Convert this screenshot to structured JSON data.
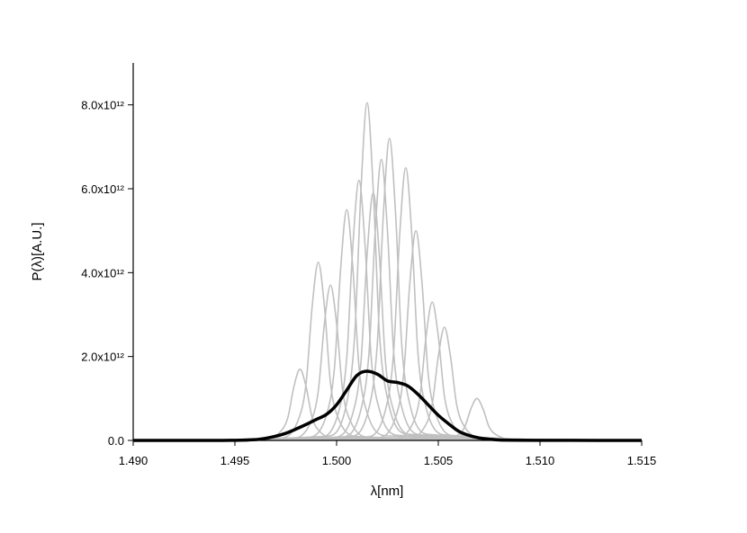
{
  "chart_data": {
    "type": "line",
    "x_label": "λ[nm]",
    "y_label": "P(λ)[A.U.]",
    "xlim": [
      1.49,
      1.515
    ],
    "xticks": [
      {
        "value": 1.49,
        "label": "1.490"
      },
      {
        "value": 1.495,
        "label": "1.495"
      },
      {
        "value": 1.5,
        "label": "1.500"
      },
      {
        "value": 1.505,
        "label": "1.505"
      },
      {
        "value": 1.51,
        "label": "1.510"
      },
      {
        "value": 1.515,
        "label": "1.515"
      }
    ],
    "ylim": [
      0,
      9000000000000.0
    ],
    "yticks": [
      {
        "value": 0,
        "label": "0.0"
      },
      {
        "value": 2000000000000.0,
        "label": "2.0x10¹²"
      },
      {
        "value": 4000000000000.0,
        "label": "4.0x10¹²"
      },
      {
        "value": 6000000000000.0,
        "label": "6.0x10¹²"
      },
      {
        "value": 8000000000000.0,
        "label": "8.0x10¹²"
      }
    ],
    "series": [
      {
        "color": "#c0c0c0",
        "x": [
          1.49,
          1.4995,
          1.5005,
          1.5009,
          1.5012,
          1.5015,
          1.5018,
          1.5021,
          1.5025,
          1.5035,
          1.515
        ],
        "values": [
          0,
          100000000000.0,
          900000000000.0,
          2600000000000.0,
          6000000000000.0,
          8050000000000.0,
          6000000000000.0,
          2600000000000.0,
          1000000000000.0,
          150000000000.0,
          0
        ]
      },
      {
        "color": "#c0c0c0",
        "x": [
          1.49,
          1.5006,
          1.5016,
          1.502,
          1.5023,
          1.5026,
          1.5029,
          1.5032,
          1.5036,
          1.5046,
          1.515
        ],
        "values": [
          0,
          90000000000.0,
          790000000000.0,
          2300000000000.0,
          5400000000000.0,
          7200000000000.0,
          5400000000000.0,
          2300000000000.0,
          860000000000.0,
          140000000000.0,
          0
        ]
      },
      {
        "color": "#c0c0c0",
        "x": [
          1.49,
          1.5014,
          1.5024,
          1.5028,
          1.5031,
          1.5034,
          1.5037,
          1.504,
          1.5044,
          1.5054,
          1.515
        ],
        "values": [
          0,
          80000000000.0,
          720000000000.0,
          2080000000000.0,
          4880000000000.0,
          6500000000000.0,
          4880000000000.0,
          2080000000000.0,
          780000000000.0,
          130000000000.0,
          0
        ]
      },
      {
        "color": "#c0c0c0",
        "x": [
          1.49,
          1.5002,
          1.5012,
          1.5016,
          1.5019,
          1.5022,
          1.5025,
          1.5028,
          1.5032,
          1.5042,
          1.515
        ],
        "values": [
          0,
          80000000000.0,
          740000000000.0,
          2140000000000.0,
          5000000000000.0,
          6700000000000.0,
          5000000000000.0,
          2140000000000.0,
          800000000000.0,
          130000000000.0,
          0
        ]
      },
      {
        "color": "#c0c0c0",
        "x": [
          1.49,
          1.4985,
          1.4995,
          1.4999,
          1.5002,
          1.5005,
          1.5008,
          1.5011,
          1.5015,
          1.5025,
          1.515
        ],
        "values": [
          0,
          70000000000.0,
          600000000000.0,
          1760000000000.0,
          4100000000000.0,
          5500000000000.0,
          4100000000000.0,
          1760000000000.0,
          660000000000.0,
          110000000000.0,
          0
        ]
      },
      {
        "color": "#c0c0c0",
        "x": [
          1.49,
          1.4971,
          1.4981,
          1.4985,
          1.4988,
          1.4991,
          1.4994,
          1.4997,
          1.5001,
          1.5011,
          1.515
        ],
        "values": [
          0,
          50000000000.0,
          470000000000.0,
          1360000000000.0,
          3200000000000.0,
          4250000000000.0,
          3200000000000.0,
          1360000000000.0,
          510000000000.0,
          90000000000.0,
          0
        ]
      },
      {
        "color": "#c0c0c0",
        "x": [
          1.49,
          1.5033,
          1.5043,
          1.5047,
          1.505,
          1.5053,
          1.5056,
          1.5059,
          1.5063,
          1.5073,
          1.515
        ],
        "values": [
          0,
          30000000000.0,
          300000000000.0,
          860000000000.0,
          2000000000000.0,
          2700000000000.0,
          2000000000000.0,
          860000000000.0,
          320000000000.0,
          50000000000.0,
          0
        ]
      },
      {
        "color": "#c0c0c0",
        "x": [
          1.49,
          1.5049,
          1.5059,
          1.5063,
          1.5066,
          1.5069,
          1.5072,
          1.5075,
          1.5079,
          1.5089,
          1.515
        ],
        "values": [
          0,
          10000000000.0,
          110000000000.0,
          320000000000.0,
          750000000000.0,
          1000000000000.0,
          750000000000.0,
          320000000000.0,
          120000000000.0,
          20000000000.0,
          0
        ]
      },
      {
        "color": "#c0c0c0",
        "x": [
          1.49,
          1.4991,
          1.5001,
          1.5005,
          1.5008,
          1.5011,
          1.5014,
          1.5017,
          1.5021,
          1.5031,
          1.515
        ],
        "values": [
          0,
          70000000000.0,
          680000000000.0,
          1980000000000.0,
          4650000000000.0,
          6200000000000.0,
          4650000000000.0,
          1980000000000.0,
          740000000000.0,
          120000000000.0,
          0
        ]
      },
      {
        "color": "#c0c0c0",
        "x": [
          1.49,
          1.5019,
          1.5029,
          1.5033,
          1.5036,
          1.5039,
          1.5042,
          1.5045,
          1.5049,
          1.5059,
          1.515
        ],
        "values": [
          0,
          60000000000.0,
          550000000000.0,
          1600000000000.0,
          3750000000000.0,
          5000000000000.0,
          3750000000000.0,
          1600000000000.0,
          600000000000.0,
          100000000000.0,
          0
        ]
      },
      {
        "color": "#c0c0c0",
        "x": [
          1.49,
          1.4977,
          1.4987,
          1.4991,
          1.4994,
          1.4997,
          1.5,
          1.5003,
          1.5007,
          1.5017,
          1.515
        ],
        "values": [
          0,
          40000000000.0,
          410000000000.0,
          1180000000000.0,
          2780000000000.0,
          3700000000000.0,
          2780000000000.0,
          1180000000000.0,
          440000000000.0,
          70000000000.0,
          0
        ]
      },
      {
        "color": "#c0c0c0",
        "x": [
          1.49,
          1.5027,
          1.5037,
          1.5041,
          1.5044,
          1.5047,
          1.505,
          1.5053,
          1.5057,
          1.5067,
          1.515
        ],
        "values": [
          0,
          40000000000.0,
          360000000000.0,
          1060000000000.0,
          2480000000000.0,
          3300000000000.0,
          2480000000000.0,
          1060000000000.0,
          400000000000.0,
          70000000000.0,
          0
        ]
      },
      {
        "color": "#c0c0c0",
        "x": [
          1.49,
          1.4962,
          1.4972,
          1.4976,
          1.4979,
          1.4982,
          1.4985,
          1.4988,
          1.4992,
          1.5002,
          1.515
        ],
        "values": [
          0,
          20000000000.0,
          190000000000.0,
          540000000000.0,
          1280000000000.0,
          1700000000000.0,
          1280000000000.0,
          540000000000.0,
          200000000000.0,
          30000000000.0,
          0
        ]
      },
      {
        "color": "#c0c0c0",
        "x": [
          1.49,
          1.4998,
          1.5008,
          1.5012,
          1.5015,
          1.5018,
          1.5021,
          1.5024,
          1.5028,
          1.5038,
          1.515
        ],
        "values": [
          0,
          70000000000.0,
          650000000000.0,
          1890000000000.0,
          4430000000000.0,
          5900000000000.0,
          4430000000000.0,
          1890000000000.0,
          710000000000.0,
          120000000000.0,
          0
        ]
      },
      {
        "color": "#000000",
        "width": 3.5,
        "x": [
          1.49,
          1.494,
          1.496,
          1.4965,
          1.497,
          1.4975,
          1.498,
          1.4985,
          1.499,
          1.4995,
          1.5,
          1.5005,
          1.501,
          1.5015,
          1.502,
          1.5025,
          1.503,
          1.5035,
          1.504,
          1.5045,
          1.505,
          1.5055,
          1.506,
          1.5065,
          1.507,
          1.5075,
          1.508,
          1.51,
          1.515
        ],
        "values": [
          0,
          0,
          20000000000.0,
          50000000000.0,
          100000000000.0,
          170000000000.0,
          270000000000.0,
          380000000000.0,
          500000000000.0,
          620000000000.0,
          850000000000.0,
          1200000000000.0,
          1550000000000.0,
          1650000000000.0,
          1580000000000.0,
          1420000000000.0,
          1380000000000.0,
          1300000000000.0,
          1100000000000.0,
          850000000000.0,
          600000000000.0,
          400000000000.0,
          220000000000.0,
          120000000000.0,
          60000000000.0,
          30000000000.0,
          10000000000.0,
          3000000000.0,
          0
        ]
      }
    ]
  }
}
